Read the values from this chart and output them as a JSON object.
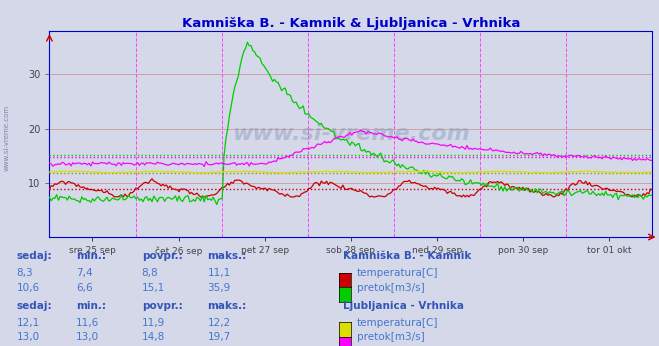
{
  "title": "Kamniška B. - Kamnik & Ljubljanica - Vrhnika",
  "title_color": "#0000cc",
  "bg_color": "#d4d8e8",
  "plot_bg_color": "#d4d8e8",
  "x_labels": [
    "sre 25 sep",
    "čet 26 sep",
    "pet 27 sep",
    "sob 28 sep",
    "ned 29 sep",
    "pon 30 sep",
    "tor 01 okt"
  ],
  "y_min": 0,
  "y_max": 38,
  "y_ticks": [
    10,
    20,
    30
  ],
  "grid_color_h": "#cc9999",
  "grid_color_v": "#ff44ff",
  "axis_color": "#0000ff",
  "bottom_axis_color": "#0000cc",
  "watermark": "www.si-vreme.com",
  "legend": {
    "kamnik_title": "Kamniška B. - Kamnik",
    "kamnik_temp_label": "temperatura[C]",
    "kamnik_pretok_label": "pretok[m3/s]",
    "kamnik_temp_color": "#cc0000",
    "kamnik_pretok_color": "#00cc00",
    "vrhnika_title": "Ljubljanica - Vrhnika",
    "vrhnika_temp_label": "temperatura[C]",
    "vrhnika_pretok_label": "pretok[m3/s]",
    "vrhnika_temp_color": "#dddd00",
    "vrhnika_pretok_color": "#ff00ff"
  },
  "stats": {
    "kamnik_temp": {
      "sedaj": "8,3",
      "min": "7,4",
      "povpr": "8,8",
      "maks": "11,1"
    },
    "kamnik_pretok": {
      "sedaj": "10,6",
      "min": "6,6",
      "povpr": "15,1",
      "maks": "35,9"
    },
    "vrhnika_temp": {
      "sedaj": "12,1",
      "min": "11,6",
      "povpr": "11,9",
      "maks": "12,2"
    },
    "vrhnika_pretok": {
      "sedaj": "13,0",
      "min": "13,0",
      "povpr": "14,8",
      "maks": "19,7"
    }
  },
  "avg_lines": {
    "kamnik_temp_avg": 8.8,
    "kamnik_pretok_avg": 15.1,
    "vrhnika_temp_avg": 11.9,
    "vrhnika_pretok_avg": 14.8
  },
  "text_color": "#4477cc",
  "header_color": "#3355bb"
}
